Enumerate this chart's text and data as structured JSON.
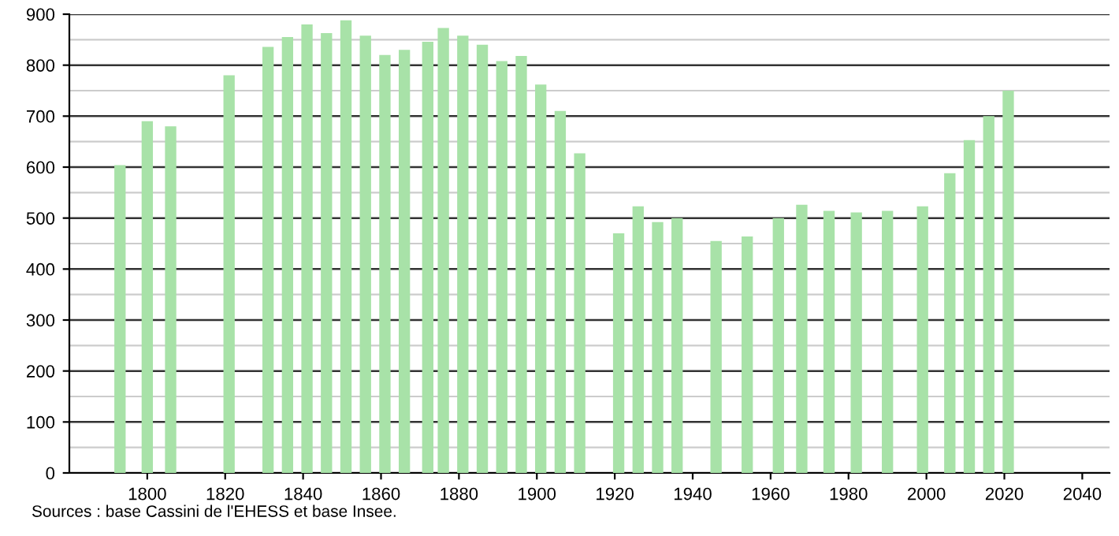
{
  "chart_data": {
    "type": "bar",
    "color": "#a8e2a8",
    "x": [
      1793,
      1800,
      1806,
      1821,
      1831,
      1836,
      1841,
      1846,
      1851,
      1856,
      1861,
      1866,
      1872,
      1876,
      1881,
      1886,
      1891,
      1896,
      1901,
      1906,
      1911,
      1921,
      1926,
      1931,
      1936,
      1946,
      1954,
      1962,
      1968,
      1975,
      1982,
      1990,
      1999,
      2006,
      2011,
      2016,
      2021
    ],
    "values": [
      604,
      690,
      680,
      780,
      836,
      855,
      880,
      863,
      888,
      858,
      820,
      830,
      846,
      873,
      858,
      840,
      808,
      818,
      762,
      710,
      627,
      470,
      523,
      492,
      500,
      455,
      464,
      500,
      526,
      514,
      511,
      514,
      523,
      588,
      653,
      700,
      750
    ],
    "xlim": [
      1780,
      2047
    ],
    "xticks": [
      1800,
      1820,
      1840,
      1860,
      1880,
      1900,
      1920,
      1940,
      1960,
      1980,
      2000,
      2020,
      2040
    ],
    "ylim": [
      0,
      900
    ],
    "yticks": [
      0,
      100,
      200,
      300,
      400,
      500,
      600,
      700,
      800,
      900
    ],
    "grid": "y",
    "annotations": [
      "Sources : base Cassini de l'EHESS et base Insee."
    ]
  }
}
